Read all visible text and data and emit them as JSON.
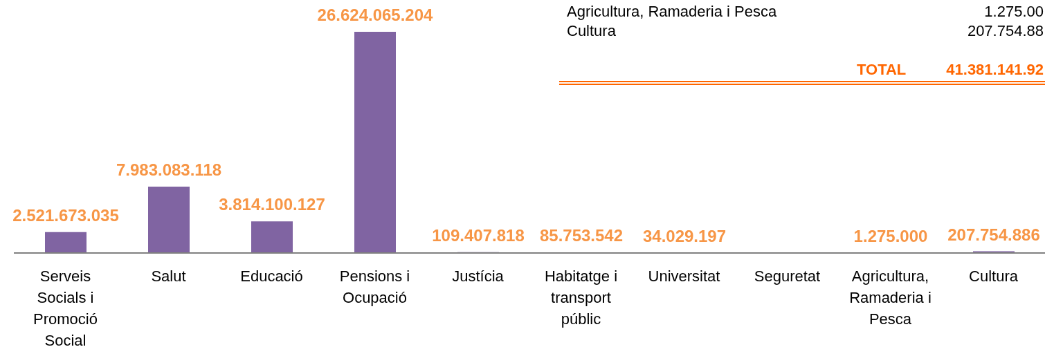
{
  "chart_data": {
    "type": "bar",
    "categories": [
      "Serveis Socials i Promoció Social",
      "Salut",
      "Educació",
      "Pensions i Ocupació",
      "Justícia",
      "Habitatge i transport públic",
      "Universitat",
      "Seguretat",
      "Agricultura, Ramaderia i Pesca",
      "Cultura"
    ],
    "values": [
      2521673035,
      7983083118,
      3814100127,
      26624065204,
      109407818,
      85753542,
      34029197,
      null,
      1275000,
      207754886
    ],
    "value_labels": [
      "2.521.673.035",
      "7.983.083.118",
      "3.814.100.127",
      "26.624.065.204",
      "109.407.818",
      "85.753.542",
      "34.029.197",
      null,
      "1.275.000",
      "207.754.886"
    ],
    "color": "#8064a2",
    "annotations": [
      "Agricultura, Ramaderia i Pesca",
      "1.275.00",
      "Cultura",
      "207.754.88",
      "TOTAL",
      "41.381.141.92"
    ]
  }
}
